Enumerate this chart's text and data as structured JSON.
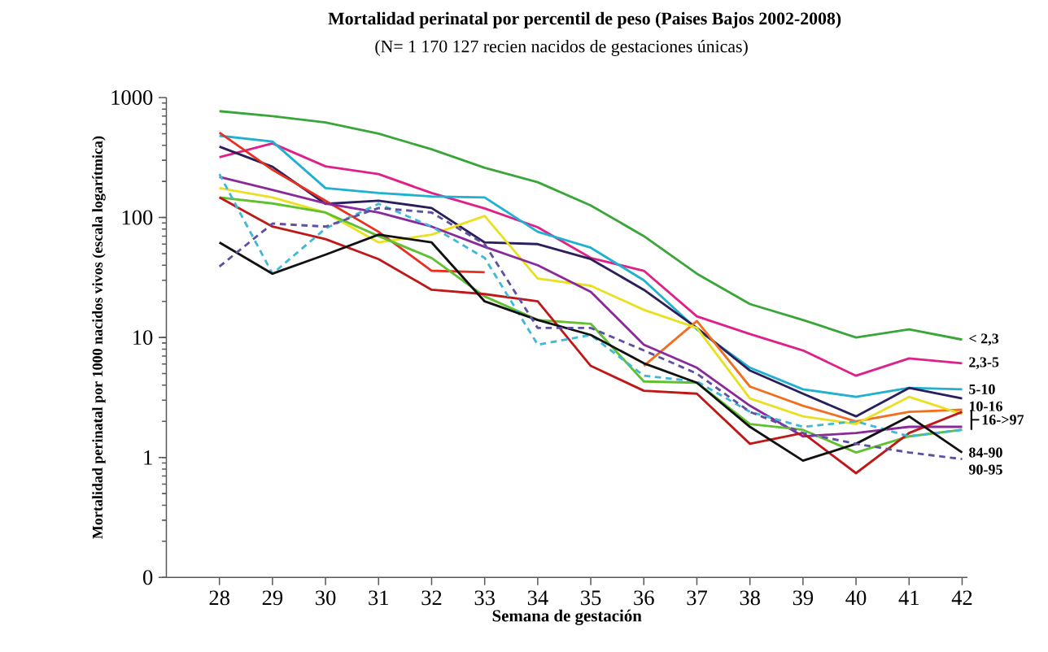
{
  "chart_data": {
    "type": "line",
    "title": "Mortalidad perinatal por percentil de peso (Paises Bajos 2002-2008)",
    "subtitle": "(N= 1 170 127 recien nacidos de gestaciones únicas)",
    "xlabel": "Semana de gestación",
    "ylabel": "Mortalidad perinatal por 1000 nacidos vivos (escala logarítmica)",
    "annotations": [
      "16->97"
    ],
    "log": "y",
    "x": [
      28,
      29,
      30,
      31,
      32,
      33,
      34,
      35,
      36,
      37,
      38,
      39,
      40,
      41,
      42
    ],
    "xlim": [
      27,
      42.1
    ],
    "xticks": [
      28,
      29,
      30,
      31,
      32,
      33,
      34,
      35,
      36,
      37,
      38,
      39,
      40,
      41,
      42
    ],
    "ylim": [
      0.1,
      1000
    ],
    "yticks": [
      {
        "value": 0.1,
        "label": "0"
      },
      1,
      10,
      100,
      1000
    ],
    "series": [
      {
        "name": "< 2,3",
        "color": "#3aa63a",
        "values": [
          770,
          700,
          620,
          500,
          370,
          260,
          197,
          126,
          70,
          34,
          19,
          14,
          10,
          11.7,
          9.6
        ]
      },
      {
        "name": "2,3-5",
        "color": "#e0208a",
        "values": [
          318,
          415,
          267,
          230,
          160,
          119,
          83,
          46,
          36,
          15,
          10.7,
          7.8,
          4.8,
          6.7,
          6.1
        ]
      },
      {
        "name": "5-10",
        "color": "#20b0d0",
        "values": [
          480,
          430,
          176,
          160,
          150,
          147,
          76,
          56,
          30,
          11.7,
          5.6,
          3.7,
          3.2,
          3.8,
          3.7
        ]
      },
      {
        "name": "10-16",
        "color": "#2a1f5a",
        "values": [
          390,
          265,
          130,
          138,
          120,
          62,
          60,
          45,
          25,
          12,
          5.3,
          3.4,
          2.2,
          3.8,
          3.1
        ]
      },
      {
        "color": "#e83020",
        "values": [
          510,
          250,
          138,
          76,
          36,
          35,
          null,
          null,
          null,
          null,
          null,
          null,
          null,
          null,
          null
        ]
      },
      {
        "color": "#f07020",
        "values": [
          null,
          null,
          null,
          null,
          null,
          null,
          null,
          null,
          5.8,
          13.7,
          3.9,
          2.7,
          2.0,
          2.4,
          2.5
        ]
      },
      {
        "color": "#e8e020",
        "values": [
          176,
          147,
          110,
          62,
          72,
          103,
          31,
          27,
          17,
          12,
          3.1,
          2.2,
          1.9,
          3.2,
          2.3
        ]
      },
      {
        "color": "#8a2a9a",
        "values": [
          218,
          170,
          131,
          110,
          84,
          57,
          40,
          24,
          8.7,
          5.6,
          2.7,
          1.5,
          1.6,
          1.8,
          1.8
        ]
      },
      {
        "color": "#60c030",
        "values": [
          147,
          131,
          110,
          70,
          46,
          22,
          14,
          13,
          4.3,
          4.2,
          1.9,
          1.7,
          1.1,
          1.5,
          1.7
        ]
      },
      {
        "color": "#c01818",
        "values": [
          147,
          84,
          66,
          45,
          25,
          23,
          20,
          5.8,
          3.6,
          3.4,
          1.3,
          1.6,
          0.74,
          1.6,
          2.4
        ]
      },
      {
        "color": "#40b8d8",
        "line_style": "dashed",
        "values": [
          230,
          34,
          81,
          130,
          84,
          46,
          8.7,
          10.5,
          4.8,
          4.3,
          2.4,
          1.8,
          2.0,
          1.5,
          1.7
        ]
      },
      {
        "name": "84-90",
        "color": "#111111",
        "values": [
          62,
          34,
          49,
          72,
          62,
          20,
          14,
          10.5,
          6.1,
          4.2,
          1.8,
          0.94,
          1.3,
          2.2,
          1.1
        ]
      },
      {
        "name": "90-95",
        "color": "#6050a0",
        "line_style": "dashed",
        "values": [
          39,
          89,
          84,
          120,
          110,
          60,
          12,
          12,
          7.8,
          5,
          2.4,
          1.6,
          1.3,
          1.1,
          0.97
        ]
      }
    ]
  }
}
